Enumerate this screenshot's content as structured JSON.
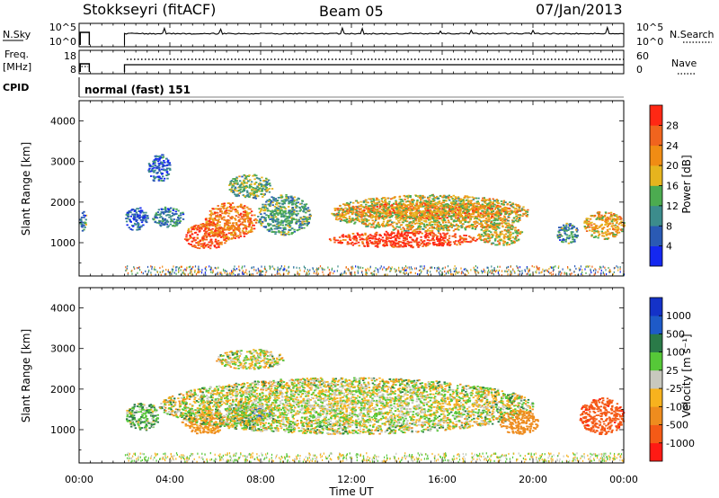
{
  "header": {
    "station": "Stokkseyri (fitACF)",
    "beam": "Beam 05",
    "date": "07/Jan/2013"
  },
  "nsky": {
    "label": "N.Sky",
    "tick_top": "10^5",
    "tick_bottom": "10^0",
    "right_tick_top": "10^5",
    "right_tick_bottom": "10^0",
    "right_label": "N.Search"
  },
  "freq": {
    "label_line1": "Freq.",
    "label_line2": "[MHz]",
    "tick_top": "18",
    "tick_bottom": "8",
    "right_tick_top": "60",
    "right_tick_bottom": "0",
    "right_label": "Nave"
  },
  "cpid": {
    "label": "CPID",
    "program": "normal (fast) 151"
  },
  "x_axis": {
    "label": "Time UT",
    "ticks": [
      "00:00",
      "04:00",
      "08:00",
      "12:00",
      "16:00",
      "20:00",
      "00:00"
    ]
  },
  "power_panel": {
    "ylabel": "Slant Range [km]",
    "yticks": [
      "1000",
      "2000",
      "3000",
      "4000"
    ]
  },
  "velocity_panel": {
    "ylabel": "Slant Range [km]",
    "yticks": [
      "1000",
      "2000",
      "3000",
      "4000"
    ]
  },
  "power_scale": {
    "label": "Power [dB]",
    "ticks": [
      "4",
      "8",
      "12",
      "16",
      "20",
      "24",
      "28"
    ],
    "colors": [
      "#1428f0",
      "#2a5ab4",
      "#3c8c8c",
      "#4cab50",
      "#e6b41e",
      "#f08c14",
      "#f0641e",
      "#ff2814"
    ]
  },
  "velocity_scale": {
    "label": "Velocity [m s⁻¹]",
    "ticks": [
      "-1000",
      "-500",
      "-100",
      "-25",
      "25",
      "100",
      "500",
      "1000"
    ],
    "colors": [
      "#ff1a14",
      "#f45a16",
      "#ee8c1e",
      "#f7b21e",
      "#c8c8be",
      "#56c838",
      "#2a7a48",
      "#1e5ac8",
      "#1432c8"
    ]
  },
  "chart_data": [
    {
      "type": "heatmap",
      "title": "Power",
      "xlabel": "Time UT",
      "ylabel": "Slant Range [km]",
      "xlim": [
        0,
        24
      ],
      "ylim": [
        180,
        4500
      ],
      "clim": [
        0,
        32
      ],
      "units": {
        "x": "hours UT",
        "y": "km",
        "value": "dB"
      },
      "blobs": [
        {
          "x": [
            4.6,
            6.6
          ],
          "y": [
            850,
            1500
          ],
          "value": 27
        },
        {
          "x": [
            5.5,
            7.8
          ],
          "y": [
            1100,
            2000
          ],
          "value": 24
        },
        {
          "x": [
            7.8,
            10.2
          ],
          "y": [
            1200,
            2200
          ],
          "value": 12
        },
        {
          "x": [
            3.2,
            4.6
          ],
          "y": [
            1400,
            1900
          ],
          "value": 9
        },
        {
          "x": [
            2.0,
            3.0
          ],
          "y": [
            1300,
            1900
          ],
          "value": 6
        },
        {
          "x": [
            11.0,
            17.5
          ],
          "y": [
            900,
            1300
          ],
          "value": 29
        },
        {
          "x": [
            11.5,
            19.5
          ],
          "y": [
            1600,
            2000
          ],
          "value": 26
        },
        {
          "x": [
            11.0,
            19.8
          ],
          "y": [
            1300,
            2200
          ],
          "value": 18
        },
        {
          "x": [
            17.5,
            19.5
          ],
          "y": [
            950,
            1500
          ],
          "value": 19
        },
        {
          "x": [
            6.5,
            8.5
          ],
          "y": [
            2100,
            2700
          ],
          "value": 14
        },
        {
          "x": [
            3.0,
            4.0
          ],
          "y": [
            2500,
            3200
          ],
          "value": 6
        },
        {
          "x": [
            22.2,
            24.0
          ],
          "y": [
            1100,
            1800
          ],
          "value": 20
        },
        {
          "x": [
            21.0,
            22.0
          ],
          "y": [
            1000,
            1500
          ],
          "value": 10
        },
        {
          "x": [
            0.0,
            0.3
          ],
          "y": [
            1300,
            1800
          ],
          "value": 10
        }
      ]
    },
    {
      "type": "heatmap",
      "title": "Velocity",
      "xlabel": "Time UT",
      "ylabel": "Slant Range [km]",
      "xlim": [
        0,
        24
      ],
      "ylim": [
        180,
        4500
      ],
      "clim": [
        -1500,
        1500
      ],
      "units": {
        "x": "hours UT",
        "y": "km",
        "value": "m/s"
      },
      "blobs": [
        {
          "x": [
            4.5,
            6.5
          ],
          "y": [
            900,
            1500
          ],
          "value": -150
        },
        {
          "x": [
            6.5,
            8.2
          ],
          "y": [
            1100,
            1700
          ],
          "value": 80
        },
        {
          "x": [
            7.5,
            8.5
          ],
          "y": [
            1300,
            1600
          ],
          "value": 600
        },
        {
          "x": [
            2.0,
            3.5
          ],
          "y": [
            1000,
            1700
          ],
          "value": 60
        },
        {
          "x": [
            3.5,
            20.0
          ],
          "y": [
            900,
            2300
          ],
          "value": 0
        },
        {
          "x": [
            18.5,
            20.2
          ],
          "y": [
            900,
            1500
          ],
          "value": -300
        },
        {
          "x": [
            22.0,
            24.0
          ],
          "y": [
            900,
            1800
          ],
          "value": -900
        },
        {
          "x": [
            6.0,
            9.0
          ],
          "y": [
            2500,
            3000
          ],
          "value": 0
        }
      ]
    }
  ]
}
